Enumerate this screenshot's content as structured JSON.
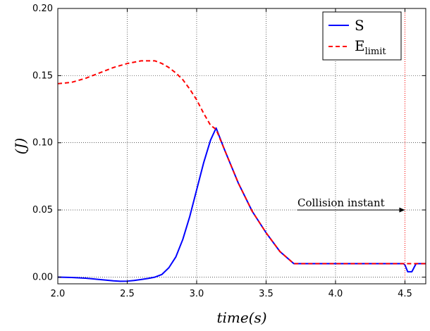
{
  "chart_data": {
    "type": "line",
    "title": "",
    "xlabel": "time(s)",
    "ylabel": "(J)",
    "xlim": [
      2.0,
      4.65
    ],
    "ylim": [
      -0.005,
      0.2
    ],
    "xticks": [
      "2.0",
      "2.5",
      "3.0",
      "3.5",
      "4.0",
      "4.5"
    ],
    "yticks": [
      "0.00",
      "0.05",
      "0.10",
      "0.15",
      "0.20"
    ],
    "grid": true,
    "legend_position": "top-right",
    "legend": {
      "S": "S",
      "E_main": "E",
      "E_sub": "limit"
    },
    "annotation": {
      "text": "Collision instant",
      "target_x": 4.5,
      "target_y": 0.05
    },
    "collision_line_x": 4.5,
    "series": [
      {
        "name": "S",
        "color": "#0000ff",
        "style": "solid",
        "x": [
          2.0,
          2.1,
          2.2,
          2.3,
          2.4,
          2.45,
          2.5,
          2.55,
          2.6,
          2.65,
          2.7,
          2.75,
          2.8,
          2.85,
          2.9,
          2.95,
          3.0,
          3.05,
          3.1,
          3.14,
          3.2,
          3.3,
          3.4,
          3.5,
          3.6,
          3.7,
          4.0,
          4.3,
          4.49,
          4.5,
          4.52,
          4.55,
          4.56,
          4.58,
          4.65
        ],
        "y": [
          0.0,
          -0.0003,
          -0.0008,
          -0.0018,
          -0.0028,
          -0.0031,
          -0.003,
          -0.0025,
          -0.0018,
          -0.001,
          0.0,
          0.002,
          0.007,
          0.015,
          0.028,
          0.045,
          0.065,
          0.085,
          0.102,
          0.111,
          0.095,
          0.07,
          0.049,
          0.033,
          0.019,
          0.01,
          0.01,
          0.01,
          0.01,
          0.009,
          0.004,
          0.004,
          0.006,
          0.01,
          0.01
        ]
      },
      {
        "name": "E_limit",
        "color": "#ff0000",
        "style": "dashed",
        "x": [
          2.0,
          2.1,
          2.2,
          2.3,
          2.4,
          2.5,
          2.6,
          2.7,
          2.75,
          2.8,
          2.85,
          2.9,
          2.95,
          3.0,
          3.05,
          3.1,
          3.14,
          3.2,
          3.3,
          3.4,
          3.5,
          3.6,
          3.7,
          4.0,
          4.3,
          4.65
        ],
        "y": [
          0.144,
          0.145,
          0.148,
          0.152,
          0.156,
          0.159,
          0.161,
          0.161,
          0.159,
          0.156,
          0.152,
          0.147,
          0.14,
          0.132,
          0.122,
          0.113,
          0.11,
          0.095,
          0.07,
          0.049,
          0.033,
          0.019,
          0.01,
          0.01,
          0.01,
          0.01
        ]
      }
    ]
  }
}
